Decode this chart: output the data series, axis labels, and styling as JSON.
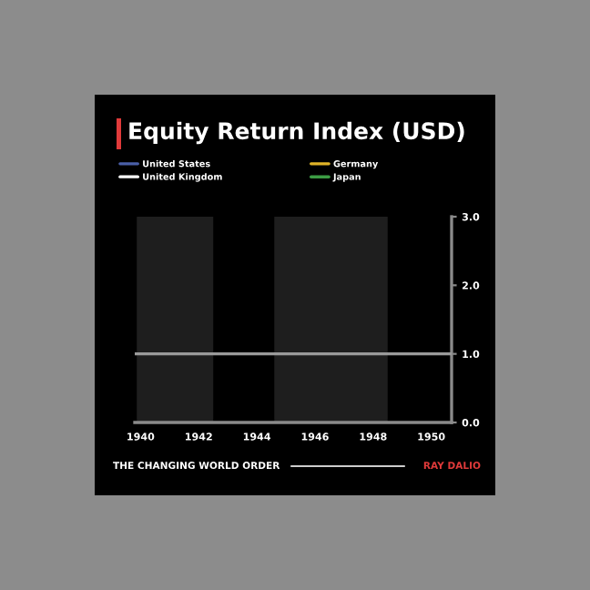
{
  "chart_data": {
    "type": "line",
    "title": "Equity Return Index (USD)",
    "series": [
      {
        "name": "United States",
        "color": "#4a5fa8"
      },
      {
        "name": "Germany",
        "color": "#e0b428"
      },
      {
        "name": "United Kingdom",
        "color": "#ffffff"
      },
      {
        "name": "Japan",
        "color": "#3c9c44"
      },
      {
        "color": "#9a9a9a",
        "x": [
          1939.8,
          1950.7
        ],
        "values": [
          1,
          1
        ]
      }
    ],
    "xlim": [
      1939.8,
      1950.7
    ],
    "xticks": [
      1940,
      1942,
      1944,
      1946,
      1948,
      1950
    ],
    "ylim": [
      0,
      3
    ],
    "yticks": [
      {
        "value": 0,
        "label": "0.0"
      },
      {
        "value": 1,
        "label": "1.0"
      },
      {
        "value": 2,
        "label": "2.0"
      },
      {
        "value": 3,
        "label": "3.0"
      }
    ],
    "bands": [
      {
        "axis": "x",
        "from": 1939.87,
        "to": 1942.5,
        "color": "#1e1e1e"
      },
      {
        "axis": "x",
        "from": 1944.6,
        "to": 1948.5,
        "color": "#1e1e1e"
      }
    ],
    "legend": "top",
    "grid": false,
    "annotations": [
      "THE CHANGING WORLD ORDER",
      "RAY DALIO"
    ]
  }
}
